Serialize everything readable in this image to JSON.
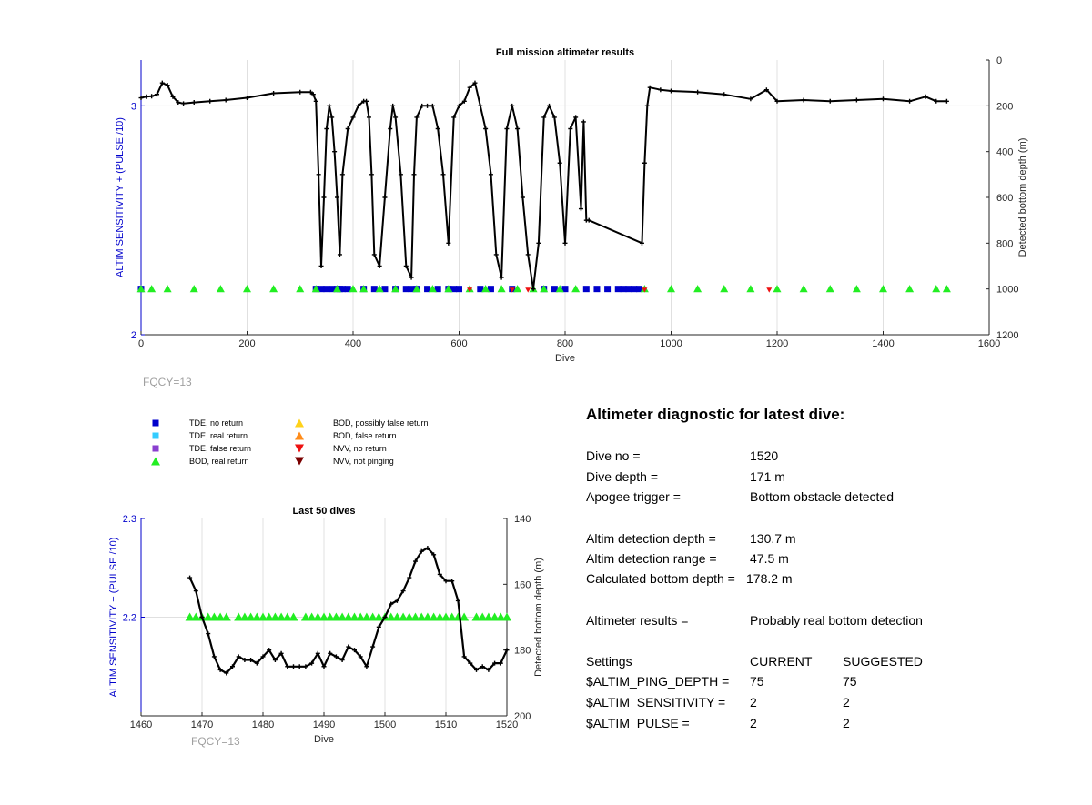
{
  "chart_data": [
    {
      "type": "line",
      "title": "Full mission altimeter results",
      "xlabel": "Dive",
      "ylabel_left": "ALTIM SENSITIVITY + (PULSE /10)",
      "ylabel_right": "Detected bottom depth (m)",
      "xlim": [
        0,
        1600
      ],
      "ylim_left": [
        2,
        3.2
      ],
      "ylim_right": [
        1200,
        0
      ],
      "x_ticks": [
        "0",
        "200",
        "400",
        "600",
        "800",
        "1000",
        "1200",
        "1400",
        "1600"
      ],
      "y_left_ticks": [
        "2",
        "3"
      ],
      "y_right_ticks": [
        "0",
        "200",
        "400",
        "600",
        "800",
        "1000",
        "1200"
      ],
      "grid": true,
      "bottom_depth_series": {
        "name": "Detected bottom depth",
        "x": [
          0,
          10,
          20,
          30,
          40,
          50,
          60,
          70,
          80,
          100,
          130,
          160,
          200,
          250,
          300,
          320,
          325,
          330,
          335,
          340,
          345,
          350,
          355,
          360,
          365,
          370,
          375,
          380,
          390,
          400,
          410,
          420,
          425,
          430,
          435,
          440,
          450,
          460,
          470,
          475,
          480,
          490,
          500,
          510,
          515,
          520,
          530,
          540,
          550,
          560,
          570,
          580,
          590,
          600,
          610,
          620,
          630,
          640,
          650,
          660,
          670,
          680,
          690,
          700,
          710,
          720,
          730,
          740,
          750,
          760,
          770,
          780,
          790,
          800,
          810,
          820,
          830,
          835,
          840,
          845,
          945,
          950,
          955,
          960,
          980,
          1000,
          1050,
          1100,
          1150,
          1180,
          1200,
          1250,
          1300,
          1350,
          1400,
          1450,
          1480,
          1500,
          1520
        ],
        "y": [
          165,
          160,
          158,
          150,
          100,
          110,
          160,
          185,
          190,
          185,
          180,
          175,
          165,
          145,
          140,
          140,
          150,
          180,
          500,
          900,
          600,
          300,
          200,
          250,
          400,
          600,
          850,
          500,
          300,
          250,
          200,
          180,
          180,
          250,
          500,
          850,
          900,
          600,
          300,
          200,
          250,
          500,
          900,
          950,
          500,
          250,
          200,
          200,
          200,
          300,
          500,
          800,
          250,
          200,
          180,
          120,
          100,
          200,
          300,
          500,
          850,
          950,
          300,
          200,
          300,
          600,
          850,
          1000,
          800,
          250,
          200,
          250,
          450,
          800,
          300,
          250,
          650,
          270,
          700,
          700,
          800,
          450,
          200,
          120,
          130,
          135,
          140,
          150,
          170,
          130,
          180,
          175,
          180,
          175,
          170,
          180,
          160,
          180,
          180
        ]
      },
      "tde_no_return_x": [
        0,
        330,
        340,
        350,
        360,
        370,
        375,
        380,
        390,
        420,
        440,
        460,
        480,
        500,
        510,
        520,
        540,
        560,
        580,
        590,
        600,
        640,
        660,
        700,
        760,
        780,
        800,
        840,
        860,
        880,
        900,
        910,
        920,
        930,
        940
      ],
      "bod_real_return_x": [
        0,
        20,
        50,
        100,
        150,
        200,
        250,
        300,
        330,
        370,
        400,
        420,
        450,
        480,
        520,
        550,
        580,
        620,
        650,
        680,
        710,
        740,
        760,
        790,
        820,
        950,
        1000,
        1050,
        1100,
        1150,
        1200,
        1250,
        1300,
        1350,
        1400,
        1450,
        1500,
        1520
      ],
      "nvv_no_return_x": [
        620,
        700,
        730,
        950,
        1185
      ],
      "annotation": "FQCY=13"
    },
    {
      "type": "line",
      "title": "Last 50 dives",
      "xlabel": "Dive",
      "ylabel_left": "ALTIM SENSITIVITY + (PULSE /10)",
      "ylabel_right": "Detected bottom depth (m)",
      "xlim": [
        1460,
        1520
      ],
      "ylim_left": [
        2.1,
        2.3
      ],
      "ylim_right": [
        200,
        140
      ],
      "x_ticks": [
        "1460",
        "1470",
        "1480",
        "1490",
        "1500",
        "1510",
        "1520"
      ],
      "y_left_ticks": [
        "2.2",
        "2.3"
      ],
      "y_right_ticks": [
        "140",
        "160",
        "180",
        "200"
      ],
      "grid": true,
      "bottom_depth_series": {
        "name": "Detected bottom depth",
        "x": [
          1468,
          1469,
          1470,
          1471,
          1472,
          1473,
          1474,
          1475,
          1476,
          1477,
          1478,
          1479,
          1480,
          1481,
          1482,
          1483,
          1484,
          1485,
          1486,
          1487,
          1488,
          1489,
          1490,
          1491,
          1492,
          1493,
          1494,
          1495,
          1496,
          1497,
          1498,
          1499,
          1500,
          1501,
          1502,
          1503,
          1504,
          1505,
          1506,
          1507,
          1508,
          1509,
          1510,
          1511,
          1512,
          1513,
          1514,
          1515,
          1516,
          1517,
          1518,
          1519,
          1520
        ],
        "y": [
          158,
          162,
          170,
          175,
          182,
          186,
          187,
          185,
          182,
          183,
          183,
          184,
          182,
          180,
          183,
          181,
          185,
          185,
          185,
          185,
          184,
          181,
          185,
          181,
          182,
          183,
          179,
          180,
          182,
          185,
          179,
          173,
          170,
          166,
          165,
          162,
          158,
          153,
          150,
          149,
          151,
          157,
          159,
          159,
          165,
          182,
          184,
          186,
          185,
          186,
          184,
          184,
          180
        ]
      },
      "bod_real_return_x": [
        1468,
        1469,
        1470,
        1471,
        1472,
        1473,
        1474,
        1476,
        1477,
        1478,
        1479,
        1480,
        1481,
        1482,
        1483,
        1484,
        1485,
        1487,
        1488,
        1489,
        1490,
        1491,
        1492,
        1493,
        1494,
        1495,
        1496,
        1497,
        1498,
        1499,
        1500,
        1501,
        1502,
        1503,
        1504,
        1505,
        1506,
        1507,
        1508,
        1509,
        1510,
        1511,
        1512,
        1513,
        1515,
        1516,
        1517,
        1518,
        1519,
        1520
      ],
      "bod_real_return_y": 2.2,
      "annotation": "FQCY=13"
    }
  ],
  "legend": {
    "items": [
      {
        "label": "TDE, no return",
        "color": "#0000cc",
        "shape": "square"
      },
      {
        "label": "TDE, real return",
        "color": "#33ccff",
        "shape": "square"
      },
      {
        "label": "TDE, false return",
        "color": "#8a3fcf",
        "shape": "square"
      },
      {
        "label": "BOD, real return",
        "color": "#22ee22",
        "shape": "triangle-up"
      },
      {
        "label": "BOD, possibly false return",
        "color": "#ffd21a",
        "shape": "triangle-up"
      },
      {
        "label": "BOD, false return",
        "color": "#ff8c1a",
        "shape": "triangle-up"
      },
      {
        "label": "NVV, no return",
        "color": "#ee1111",
        "shape": "triangle-down"
      },
      {
        "label": "NVV, not pinging",
        "color": "#7a0000",
        "shape": "triangle-down"
      }
    ]
  },
  "fqcy_top": "FQCY=13",
  "fqcy_bottom": "FQCY=13",
  "diagnostic": {
    "title": "Altimeter diagnostic for latest dive:",
    "dive_no_label": "Dive no =",
    "dive_no_value": "1520",
    "dive_depth_label": "Dive depth =",
    "dive_depth_value": "171 m",
    "apogee_label": "Apogee trigger =",
    "apogee_value": "Bottom obstacle detected",
    "det_depth_label": "Altim detection depth =",
    "det_depth_value": "130.7 m",
    "det_range_label": "Altim detection range =",
    "det_range_value": "47.5 m",
    "calc_bottom_label": "Calculated bottom depth =",
    "calc_bottom_value": "178.2 m",
    "results_label": "Altimeter results =",
    "results_value": "Probably real bottom detection",
    "settings_label": "Settings",
    "current_label": "CURRENT",
    "suggested_label": "SUGGESTED",
    "ping_depth_label": "$ALTIM_PING_DEPTH =",
    "ping_depth_current": "75",
    "ping_depth_suggested": "75",
    "sensitivity_label": "$ALTIM_SENSITIVITY =",
    "sensitivity_current": "2",
    "sensitivity_suggested": "2",
    "pulse_label": "$ALTIM_PULSE =",
    "pulse_current": "2",
    "pulse_suggested": "2"
  },
  "colors": {
    "axis_left": "#0000cc",
    "line": "#000000",
    "grid": "#e0e0e0",
    "fqcy": "#a0a0a0"
  }
}
